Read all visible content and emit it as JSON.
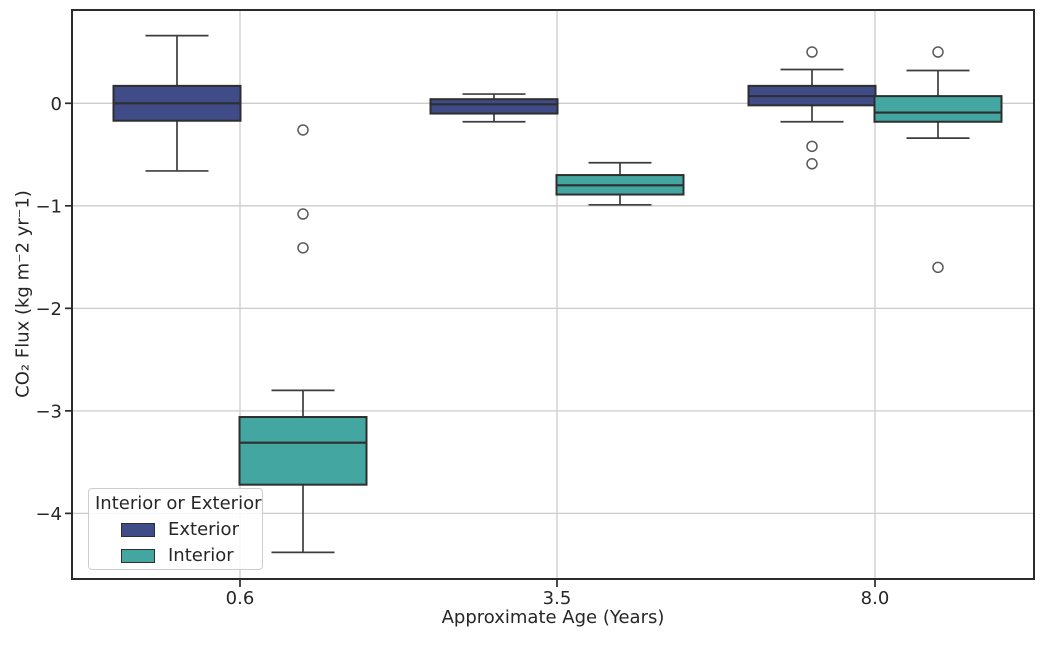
{
  "chart_data": {
    "type": "boxplot",
    "title": "",
    "xlabel": "Approximate Age (Years)",
    "ylabel": "CO₂ Flux (kg m⁻2 yr⁻1)",
    "categories": [
      "0.6",
      "3.5",
      "8.0"
    ],
    "ylim": [
      -4.64,
      0.91
    ],
    "grid": true,
    "yticks": [
      {
        "value": 0,
        "label": "0"
      },
      {
        "value": -1,
        "label": "−1"
      },
      {
        "value": -2,
        "label": "−2"
      },
      {
        "value": -3,
        "label": "−3"
      },
      {
        "value": -4,
        "label": "−4"
      }
    ],
    "legend": {
      "title": "Interior or Exterior",
      "position": "lower left"
    },
    "series": [
      {
        "name": "Exterior",
        "color": "#3F4C88",
        "boxes": [
          {
            "category": "0.6",
            "whisker_low": -0.66,
            "q1": -0.17,
            "median": 0.0,
            "q3": 0.17,
            "whisker_high": 0.66,
            "outliers": []
          },
          {
            "category": "3.5",
            "whisker_low": -0.18,
            "q1": -0.1,
            "median": -0.01,
            "q3": 0.04,
            "whisker_high": 0.09,
            "outliers": []
          },
          {
            "category": "8.0",
            "whisker_low": -0.18,
            "q1": -0.02,
            "median": 0.07,
            "q3": 0.17,
            "whisker_high": 0.33,
            "outliers": [
              0.5,
              -0.42,
              -0.59
            ]
          }
        ]
      },
      {
        "name": "Interior",
        "color": "#43A6A0",
        "boxes": [
          {
            "category": "0.6",
            "whisker_low": -4.38,
            "q1": -3.72,
            "median": -3.31,
            "q3": -3.06,
            "whisker_high": -2.8,
            "outliers": [
              -0.26,
              -1.08,
              -1.41
            ]
          },
          {
            "category": "3.5",
            "whisker_low": -0.99,
            "q1": -0.89,
            "median": -0.8,
            "q3": -0.7,
            "whisker_high": -0.58,
            "outliers": []
          },
          {
            "category": "8.0",
            "whisker_low": -0.34,
            "q1": -0.18,
            "median": -0.09,
            "q3": 0.07,
            "whisker_high": 0.32,
            "outliers": [
              0.5,
              -1.6
            ]
          }
        ]
      }
    ],
    "style": {
      "box_edge": "#2e2e2e",
      "median_line": "#2e2e2e",
      "whisker": "#3d3d3d",
      "outlier_stroke": "#595959",
      "gridline": "#cccccc",
      "spine": "#2b2b2b",
      "text": "#262626",
      "background": "#ffffff"
    }
  }
}
